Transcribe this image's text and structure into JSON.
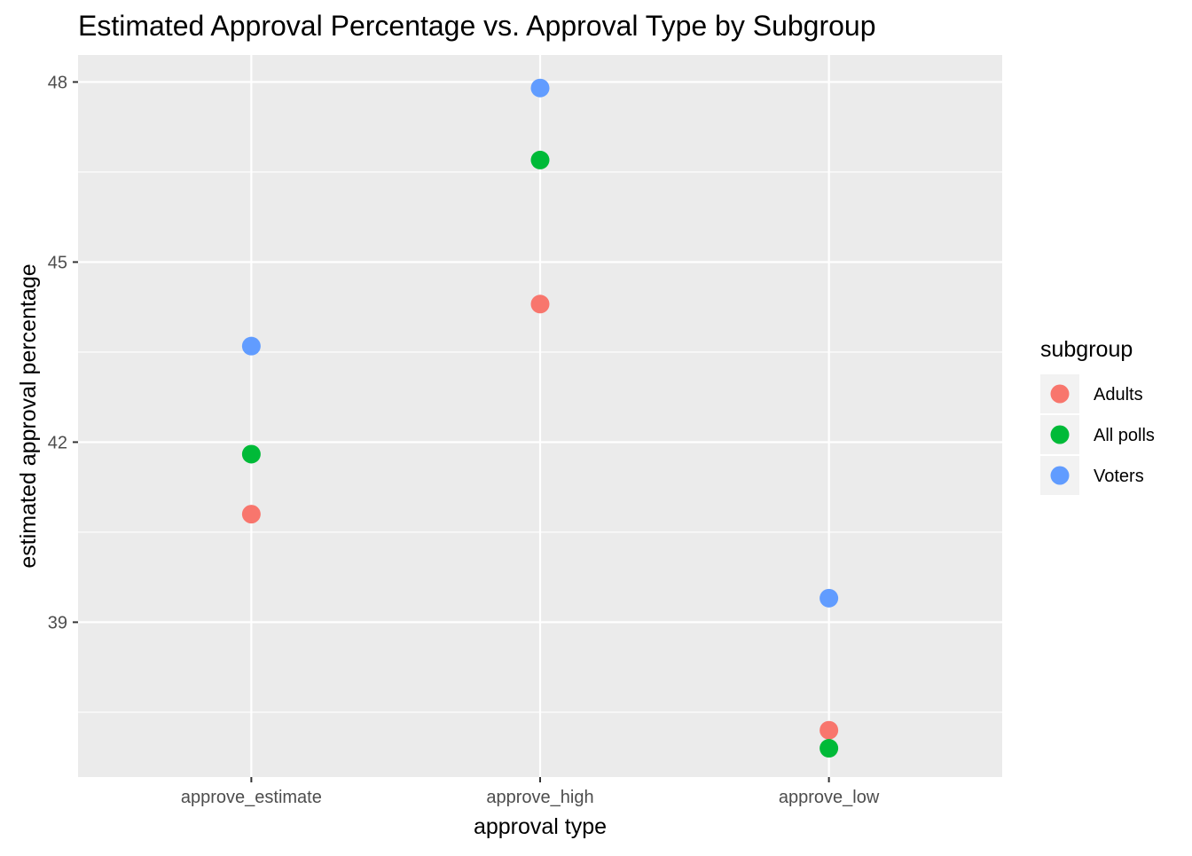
{
  "chart_data": {
    "type": "scatter",
    "title": "Estimated Approval Percentage vs. Approval Type by Subgroup",
    "xlabel": "approval type",
    "ylabel": "estimated approval percentage",
    "categories": [
      "approve_estimate",
      "approve_high",
      "approve_low"
    ],
    "y_ticks": [
      "39",
      "42",
      "45",
      "48"
    ],
    "ylim": [
      36.42,
      48.45
    ],
    "grid": true,
    "legend": {
      "title": "subgroup",
      "placement": "right"
    },
    "series": [
      {
        "name": "Adults",
        "color": "#F8766D",
        "values": [
          40.8,
          44.3,
          37.2
        ]
      },
      {
        "name": "All polls",
        "color": "#00BA38",
        "values": [
          41.8,
          46.7,
          36.9
        ]
      },
      {
        "name": "Voters",
        "color": "#619CFF",
        "values": [
          43.6,
          47.9,
          39.4
        ]
      }
    ],
    "panel_background": "#EBEBEB",
    "grid_color": "#FFFFFF"
  }
}
